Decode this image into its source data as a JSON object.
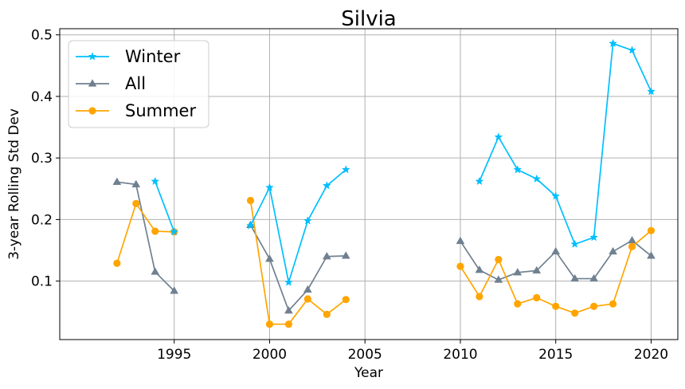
{
  "chart_data": {
    "type": "line",
    "title": "Silvia",
    "xlabel": "Year",
    "ylabel": "3-year Rolling Std Dev",
    "xlim": [
      1989.0,
      2021.4
    ],
    "ylim": [
      0.005,
      0.51
    ],
    "xticks": [
      1995,
      2000,
      2005,
      2010,
      2015,
      2020
    ],
    "yticks": [
      0.1,
      0.2,
      0.3,
      0.4,
      0.5
    ],
    "xtick_labels": [
      "1995",
      "2000",
      "2005",
      "2010",
      "2015",
      "2020"
    ],
    "ytick_labels": [
      "0.1",
      "0.2",
      "0.3",
      "0.4",
      "0.5"
    ],
    "grid": true,
    "legend_position": "upper-left",
    "series": [
      {
        "name": "Winter",
        "color": "#00bfff",
        "marker": "star",
        "points": [
          [
            1994,
            0.262
          ],
          [
            1995,
            0.18
          ],
          [
            1996,
            null
          ],
          [
            1998,
            null
          ],
          [
            1999,
            0.19
          ],
          [
            2000,
            0.252
          ],
          [
            2001,
            0.098
          ],
          [
            2002,
            0.198
          ],
          [
            2003,
            0.255
          ],
          [
            2004,
            0.281
          ],
          [
            2005,
            null
          ],
          [
            2010,
            null
          ],
          [
            2011,
            0.262
          ],
          [
            2012,
            0.334
          ],
          [
            2013,
            0.281
          ],
          [
            2014,
            0.266
          ],
          [
            2015,
            0.238
          ],
          [
            2016,
            0.16
          ],
          [
            2017,
            0.171
          ],
          [
            2018,
            0.486
          ],
          [
            2019,
            0.475
          ],
          [
            2020,
            0.408
          ]
        ]
      },
      {
        "name": "All",
        "color": "#708090",
        "marker": "triangle",
        "points": [
          [
            1992,
            0.261
          ],
          [
            1993,
            0.257
          ],
          [
            1994,
            0.115
          ],
          [
            1995,
            0.084
          ],
          [
            1996,
            null
          ],
          [
            1998,
            null
          ],
          [
            1999,
            0.191
          ],
          [
            2000,
            0.136
          ],
          [
            2001,
            0.052
          ],
          [
            2002,
            0.086
          ],
          [
            2003,
            0.14
          ],
          [
            2004,
            0.141
          ],
          [
            2005,
            null
          ],
          [
            2009,
            null
          ],
          [
            2010,
            0.165
          ],
          [
            2011,
            0.118
          ],
          [
            2012,
            0.102
          ],
          [
            2013,
            0.114
          ],
          [
            2014,
            0.117
          ],
          [
            2015,
            0.148
          ],
          [
            2016,
            0.104
          ],
          [
            2017,
            0.104
          ],
          [
            2018,
            0.148
          ],
          [
            2019,
            0.166
          ],
          [
            2020,
            0.141
          ]
        ]
      },
      {
        "name": "Summer",
        "color": "#ffa500",
        "marker": "circle",
        "points": [
          [
            1992,
            0.129
          ],
          [
            1993,
            0.226
          ],
          [
            1994,
            0.181
          ],
          [
            1995,
            0.18
          ],
          [
            1996,
            null
          ],
          [
            1998,
            null
          ],
          [
            1999,
            0.231
          ],
          [
            2000,
            0.03
          ],
          [
            2001,
            0.03
          ],
          [
            2002,
            0.071
          ],
          [
            2003,
            0.046
          ],
          [
            2004,
            0.07
          ],
          [
            2005,
            null
          ],
          [
            2009,
            null
          ],
          [
            2010,
            0.124
          ],
          [
            2011,
            0.075
          ],
          [
            2012,
            0.135
          ],
          [
            2013,
            0.063
          ],
          [
            2014,
            0.073
          ],
          [
            2015,
            0.059
          ],
          [
            2016,
            0.048
          ],
          [
            2017,
            0.059
          ],
          [
            2018,
            0.063
          ],
          [
            2019,
            0.156
          ],
          [
            2020,
            0.182
          ]
        ]
      }
    ]
  }
}
